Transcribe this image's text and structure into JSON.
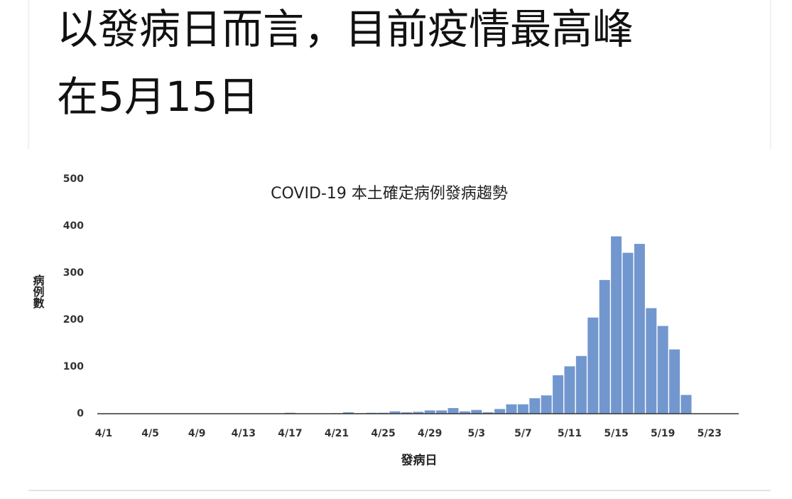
{
  "headline_lines": [
    "以發病日而言，目前疫情最高峰",
    "在5月15日"
  ],
  "chart_data": {
    "type": "bar",
    "title": "COVID-19 本土確定病例發病趨勢",
    "x_label": "發病日",
    "y_label": "病例數",
    "categories": [
      "4/1",
      null,
      null,
      null,
      "4/5",
      null,
      null,
      null,
      "4/9",
      null,
      null,
      null,
      "4/13",
      null,
      null,
      null,
      "4/17",
      null,
      null,
      null,
      "4/21",
      null,
      null,
      null,
      "4/25",
      null,
      null,
      null,
      "4/29",
      null,
      null,
      null,
      "5/3",
      null,
      null,
      null,
      "5/7",
      null,
      null,
      null,
      "5/11",
      null,
      null,
      null,
      "5/15",
      null,
      null,
      null,
      "5/19",
      null,
      null,
      null,
      "5/23",
      null,
      null
    ],
    "values": [
      0,
      0,
      0,
      0,
      0,
      0,
      0,
      0,
      0,
      0,
      0,
      0,
      0,
      0,
      0,
      0,
      2,
      0,
      0,
      0,
      1,
      3,
      1,
      2,
      2,
      5,
      3,
      4,
      7,
      7,
      12,
      5,
      8,
      3,
      10,
      20,
      20,
      33,
      39,
      82,
      101,
      123,
      205,
      285,
      378,
      343,
      362,
      225,
      187,
      137,
      40,
      0,
      0,
      0,
      0
    ],
    "color": "#7297cf",
    "ylim": [
      0,
      500
    ],
    "yticks": [
      0,
      100,
      200,
      300,
      400,
      500
    ],
    "grid": false
  }
}
